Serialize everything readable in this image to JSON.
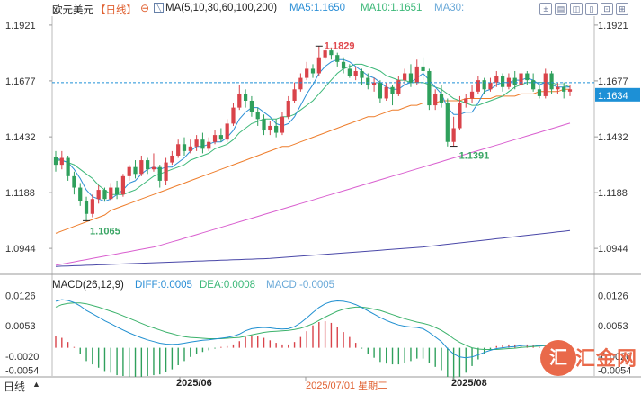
{
  "header": {
    "symbol": "欧元美元",
    "period": "【日线】",
    "ma_label": "MA(5,10,30,60,100,200)",
    "ma5": "MA5:1.1650",
    "ma10": "MA10:1.1651",
    "ma30": "MA30:"
  },
  "macd_header": {
    "label": "MACD(26,12,9)",
    "diff": "DIFF:0.0005",
    "dea": "DEA:0.0008",
    "macd": "MACD:-0.0005"
  },
  "colors": {
    "up": "#d9434a",
    "down": "#2fa05c",
    "ma5": "#2c8fd6",
    "ma10": "#3cb878",
    "ma30": "#ee7d2b",
    "ma60": "#d95fcf",
    "ma100": "#4a48a8",
    "dea_line": "#1f8fd0",
    "diff_line": "#3bb26b",
    "price_tag_bg": "#1d90d6"
  },
  "buttons": [
    "±",
    "▤",
    "◫",
    "▯",
    "⊡",
    "⊞"
  ],
  "watermark": {
    "mark": "汇",
    "name": "汇金网"
  },
  "bottom_bar": {
    "left_label": "日线",
    "dates": [
      "2025/06",
      "2025/07/01 星期二",
      "2025/08"
    ]
  },
  "chart_data": [
    {
      "type": "candlestick",
      "title": "欧元美元 日线",
      "ylim": [
        1.085,
        1.196
      ],
      "y_ticks": [
        "1.1921",
        "1.1677",
        "1.1432",
        "1.1188",
        "1.0944"
      ],
      "last_price": "1.1634",
      "annotations": {
        "high": "1.1829",
        "low_left": "1.1065",
        "low_right": "1.1391"
      },
      "candles": [
        [
          1.1345,
          1.131,
          1.137,
          1.128
        ],
        [
          1.131,
          1.134,
          1.137,
          1.129
        ],
        [
          1.134,
          1.126,
          1.135,
          1.124
        ],
        [
          1.126,
          1.121,
          1.128,
          1.118
        ],
        [
          1.121,
          1.115,
          1.123,
          1.113
        ],
        [
          1.115,
          1.1095,
          1.117,
          1.1065
        ],
        [
          1.1095,
          1.116,
          1.118,
          1.108
        ],
        [
          1.116,
          1.12,
          1.122,
          1.114
        ],
        [
          1.12,
          1.116,
          1.121,
          1.115
        ],
        [
          1.116,
          1.121,
          1.123,
          1.115
        ],
        [
          1.121,
          1.118,
          1.124,
          1.116
        ],
        [
          1.118,
          1.126,
          1.127,
          1.117
        ],
        [
          1.126,
          1.13,
          1.131,
          1.124
        ],
        [
          1.13,
          1.127,
          1.133,
          1.125
        ],
        [
          1.127,
          1.133,
          1.135,
          1.126
        ],
        [
          1.133,
          1.129,
          1.134,
          1.127
        ],
        [
          1.129,
          1.13,
          1.136,
          1.128
        ],
        [
          1.13,
          1.124,
          1.131,
          1.121
        ],
        [
          1.124,
          1.132,
          1.134,
          1.122
        ],
        [
          1.132,
          1.135,
          1.137,
          1.131
        ],
        [
          1.135,
          1.14,
          1.142,
          1.134
        ],
        [
          1.14,
          1.137,
          1.143,
          1.135
        ],
        [
          1.137,
          1.139,
          1.142,
          1.136
        ],
        [
          1.139,
          1.142,
          1.144,
          1.137
        ],
        [
          1.142,
          1.138,
          1.145,
          1.136
        ],
        [
          1.138,
          1.141,
          1.143,
          1.137
        ],
        [
          1.141,
          1.144,
          1.146,
          1.14
        ],
        [
          1.144,
          1.142,
          1.147,
          1.141
        ],
        [
          1.142,
          1.149,
          1.151,
          1.141
        ],
        [
          1.149,
          1.156,
          1.158,
          1.148
        ],
        [
          1.156,
          1.162,
          1.166,
          1.155
        ],
        [
          1.162,
          1.159,
          1.164,
          1.156
        ],
        [
          1.159,
          1.154,
          1.161,
          1.152
        ],
        [
          1.154,
          1.151,
          1.156,
          1.148
        ],
        [
          1.151,
          1.146,
          1.153,
          1.144
        ],
        [
          1.146,
          1.148,
          1.15,
          1.144
        ],
        [
          1.148,
          1.145,
          1.151,
          1.143
        ],
        [
          1.145,
          1.152,
          1.154,
          1.144
        ],
        [
          1.152,
          1.159,
          1.161,
          1.151
        ],
        [
          1.159,
          1.164,
          1.167,
          1.158
        ],
        [
          1.164,
          1.169,
          1.171,
          1.163
        ],
        [
          1.169,
          1.173,
          1.176,
          1.168
        ],
        [
          1.173,
          1.171,
          1.175,
          1.169
        ],
        [
          1.171,
          1.178,
          1.1829,
          1.17
        ],
        [
          1.178,
          1.181,
          1.183,
          1.177
        ],
        [
          1.181,
          1.179,
          1.182,
          1.177
        ],
        [
          1.179,
          1.176,
          1.18,
          1.174
        ],
        [
          1.176,
          1.173,
          1.178,
          1.171
        ],
        [
          1.173,
          1.17,
          1.175,
          1.169
        ],
        [
          1.17,
          1.172,
          1.174,
          1.168
        ],
        [
          1.172,
          1.169,
          1.173,
          1.166
        ],
        [
          1.169,
          1.166,
          1.171,
          1.164
        ],
        [
          1.166,
          1.167,
          1.169,
          1.163
        ],
        [
          1.167,
          1.16,
          1.168,
          1.158
        ],
        [
          1.16,
          1.165,
          1.167,
          1.159
        ],
        [
          1.165,
          1.162,
          1.166,
          1.157
        ],
        [
          1.162,
          1.168,
          1.17,
          1.161
        ],
        [
          1.168,
          1.171,
          1.173,
          1.166
        ],
        [
          1.171,
          1.167,
          1.175,
          1.165
        ],
        [
          1.167,
          1.174,
          1.177,
          1.166
        ],
        [
          1.174,
          1.172,
          1.178,
          1.168
        ],
        [
          1.172,
          1.157,
          1.173,
          1.155
        ],
        [
          1.157,
          1.162,
          1.164,
          1.155
        ],
        [
          1.162,
          1.158,
          1.166,
          1.156
        ],
        [
          1.158,
          1.141,
          1.16,
          1.139
        ],
        [
          1.141,
          1.147,
          1.152,
          1.1391
        ],
        [
          1.147,
          1.158,
          1.161,
          1.146
        ],
        [
          1.158,
          1.16,
          1.162,
          1.156
        ],
        [
          1.16,
          1.163,
          1.166,
          1.158
        ],
        [
          1.163,
          1.168,
          1.17,
          1.162
        ],
        [
          1.168,
          1.164,
          1.169,
          1.162
        ],
        [
          1.164,
          1.167,
          1.169,
          1.163
        ],
        [
          1.167,
          1.17,
          1.172,
          1.165
        ],
        [
          1.17,
          1.165,
          1.171,
          1.163
        ],
        [
          1.165,
          1.169,
          1.171,
          1.164
        ],
        [
          1.169,
          1.166,
          1.172,
          1.164
        ],
        [
          1.166,
          1.171,
          1.172,
          1.165
        ],
        [
          1.171,
          1.168,
          1.172,
          1.166
        ],
        [
          1.168,
          1.164,
          1.171,
          1.163
        ],
        [
          1.164,
          1.161,
          1.166,
          1.16
        ],
        [
          1.161,
          1.171,
          1.173,
          1.16
        ],
        [
          1.171,
          1.164,
          1.172,
          1.162
        ],
        [
          1.164,
          1.165,
          1.167,
          1.162
        ],
        [
          1.165,
          1.163,
          1.167,
          1.16
        ],
        [
          1.163,
          1.164,
          1.166,
          1.161
        ]
      ],
      "ma": {
        "ma5": [
          1.134,
          1.133,
          1.132,
          1.129,
          1.125,
          1.12,
          1.117,
          1.116,
          1.115,
          1.116,
          1.118,
          1.12,
          1.123,
          1.124,
          1.127,
          1.129,
          1.13,
          1.129,
          1.13,
          1.13,
          1.132,
          1.134,
          1.137,
          1.139,
          1.139,
          1.14,
          1.141,
          1.141,
          1.143,
          1.146,
          1.151,
          1.154,
          1.156,
          1.156,
          1.154,
          1.152,
          1.149,
          1.148,
          1.149,
          1.152,
          1.157,
          1.162,
          1.166,
          1.171,
          1.174,
          1.176,
          1.177,
          1.177,
          1.176,
          1.174,
          1.172,
          1.17,
          1.169,
          1.167,
          1.165,
          1.164,
          1.164,
          1.166,
          1.167,
          1.169,
          1.171,
          1.168,
          1.165,
          1.162,
          1.156,
          1.153,
          1.153,
          1.154,
          1.154,
          1.158,
          1.163,
          1.164,
          1.166,
          1.167,
          1.167,
          1.168,
          1.168,
          1.169,
          1.168,
          1.166,
          1.167,
          1.166,
          1.165,
          1.165,
          1.165
        ],
        "ma10": [
          1.133,
          1.133,
          1.132,
          1.131,
          1.129,
          1.127,
          1.125,
          1.122,
          1.12,
          1.118,
          1.118,
          1.118,
          1.119,
          1.12,
          1.122,
          1.124,
          1.126,
          1.127,
          1.128,
          1.129,
          1.13,
          1.131,
          1.133,
          1.134,
          1.135,
          1.136,
          1.138,
          1.139,
          1.14,
          1.142,
          1.145,
          1.147,
          1.149,
          1.15,
          1.151,
          1.151,
          1.151,
          1.152,
          1.152,
          1.153,
          1.155,
          1.157,
          1.159,
          1.162,
          1.165,
          1.168,
          1.171,
          1.173,
          1.174,
          1.175,
          1.175,
          1.174,
          1.173,
          1.172,
          1.17,
          1.169,
          1.168,
          1.168,
          1.167,
          1.167,
          1.167,
          1.166,
          1.165,
          1.164,
          1.162,
          1.16,
          1.159,
          1.158,
          1.157,
          1.157,
          1.158,
          1.159,
          1.16,
          1.161,
          1.163,
          1.165,
          1.166,
          1.167,
          1.167,
          1.167,
          1.167,
          1.167,
          1.166,
          1.166,
          1.165
        ],
        "ma30": [
          1.101,
          1.102,
          1.103,
          1.104,
          1.105,
          1.106,
          1.107,
          1.108,
          1.109,
          1.111,
          1.112,
          1.113,
          1.114,
          1.115,
          1.116,
          1.117,
          1.118,
          1.119,
          1.12,
          1.121,
          1.122,
          1.123,
          1.124,
          1.125,
          1.126,
          1.127,
          1.128,
          1.129,
          1.13,
          1.131,
          1.132,
          1.133,
          1.134,
          1.135,
          1.136,
          1.137,
          1.138,
          1.139,
          1.139,
          1.14,
          1.141,
          1.142,
          1.143,
          1.144,
          1.145,
          1.146,
          1.147,
          1.148,
          1.149,
          1.15,
          1.151,
          1.152,
          1.152,
          1.153,
          1.154,
          1.155,
          1.155,
          1.156,
          1.157,
          1.157,
          1.158,
          1.158,
          1.158,
          1.159,
          1.159,
          1.159,
          1.159,
          1.16,
          1.16,
          1.16,
          1.16,
          1.16,
          1.161,
          1.161,
          1.161,
          1.161,
          1.162,
          1.162,
          1.162,
          1.163,
          1.163,
          1.163,
          1.163,
          1.164,
          1.164
        ],
        "ma60": [
          1.087,
          1.0875,
          1.088,
          1.0885,
          1.089,
          1.0895,
          1.09,
          1.0905,
          1.091,
          1.0915,
          1.092,
          1.0925,
          1.093,
          1.0935,
          1.094,
          1.0945,
          1.095,
          1.0957,
          1.0965,
          1.0973,
          1.098,
          1.0988,
          1.0996,
          1.1004,
          1.1012,
          1.102,
          1.1028,
          1.1036,
          1.1044,
          1.1052,
          1.106,
          1.1068,
          1.1076,
          1.1084,
          1.1092,
          1.11,
          1.1108,
          1.1116,
          1.1124,
          1.1132,
          1.114,
          1.1148,
          1.1156,
          1.1164,
          1.1172,
          1.118,
          1.1188,
          1.1196,
          1.1204,
          1.1212,
          1.122,
          1.1228,
          1.1236,
          1.1244,
          1.1252,
          1.126,
          1.1268,
          1.1276,
          1.1284,
          1.1292,
          1.13,
          1.1308,
          1.1316,
          1.1324,
          1.1332,
          1.134,
          1.1348,
          1.1356,
          1.1364,
          1.1372,
          1.138,
          1.1388,
          1.1396,
          1.1404,
          1.1412,
          1.142,
          1.1428,
          1.1436,
          1.1444,
          1.1452,
          1.146,
          1.1468,
          1.1476,
          1.1484,
          1.1492
        ],
        "ma100": [
          1.0865,
          1.0866,
          1.0867,
          1.0868,
          1.0869,
          1.087,
          1.0871,
          1.0872,
          1.0873,
          1.0874,
          1.0875,
          1.0876,
          1.0877,
          1.0878,
          1.0879,
          1.088,
          1.0881,
          1.0882,
          1.0883,
          1.0884,
          1.0885,
          1.0886,
          1.0887,
          1.0888,
          1.0889,
          1.089,
          1.0891,
          1.0892,
          1.0893,
          1.0894,
          1.0895,
          1.0896,
          1.0897,
          1.0898,
          1.0899,
          1.09,
          1.0902,
          1.0904,
          1.0906,
          1.0908,
          1.091,
          1.0912,
          1.0914,
          1.0916,
          1.0918,
          1.092,
          1.0922,
          1.0924,
          1.0926,
          1.0928,
          1.093,
          1.0932,
          1.0934,
          1.0936,
          1.0938,
          1.094,
          1.0942,
          1.0944,
          1.0946,
          1.0948,
          1.095,
          1.0953,
          1.0956,
          1.0959,
          1.0962,
          1.0965,
          1.0968,
          1.0971,
          1.0974,
          1.0977,
          1.098,
          1.0983,
          1.0986,
          1.0989,
          1.0992,
          1.0995,
          1.0998,
          1.1001,
          1.1004,
          1.1007,
          1.101,
          1.1013,
          1.1016,
          1.1019,
          1.1022
        ]
      }
    },
    {
      "type": "macd",
      "title": "MACD(26,12,9)",
      "ylim": [
        -0.0068,
        0.014
      ],
      "y_ticks": [
        "0.0126",
        "0.0053",
        "-0.0020",
        "-0.0054"
      ],
      "diff": [
        0.0112,
        0.0116,
        0.0114,
        0.0109,
        0.0101,
        0.009,
        0.0082,
        0.0074,
        0.0065,
        0.0058,
        0.005,
        0.0043,
        0.0036,
        0.003,
        0.0024,
        0.0019,
        0.0015,
        0.0011,
        0.0009,
        0.0008,
        0.0009,
        0.0011,
        0.0014,
        0.0016,
        0.0018,
        0.0019,
        0.0021,
        0.0023,
        0.0025,
        0.0028,
        0.0033,
        0.0041,
        0.0046,
        0.0048,
        0.0049,
        0.0048,
        0.0046,
        0.0045,
        0.0046,
        0.0051,
        0.006,
        0.0072,
        0.0085,
        0.0097,
        0.0106,
        0.0111,
        0.0113,
        0.0112,
        0.0109,
        0.0104,
        0.0097,
        0.0089,
        0.0081,
        0.0073,
        0.0066,
        0.006,
        0.0055,
        0.0052,
        0.005,
        0.0049,
        0.0046,
        0.0037,
        0.0026,
        0.0015,
        -0.0002,
        -0.0015,
        -0.0022,
        -0.0024,
        -0.0022,
        -0.0017,
        -0.0011,
        -0.0006,
        -0.0002,
        0.0,
        0.0002,
        0.0003,
        0.0005,
        0.0006,
        0.0006,
        0.0005,
        0.0006,
        0.0006,
        0.0005,
        0.0005,
        0.0005
      ],
      "dea": [
        0.0098,
        0.0104,
        0.0107,
        0.0108,
        0.0108,
        0.0106,
        0.0102,
        0.0098,
        0.0093,
        0.0088,
        0.0083,
        0.0077,
        0.0071,
        0.0065,
        0.0059,
        0.0053,
        0.0048,
        0.0043,
        0.0038,
        0.0034,
        0.003,
        0.0027,
        0.0025,
        0.0024,
        0.0023,
        0.0022,
        0.0022,
        0.0022,
        0.0023,
        0.0024,
        0.0025,
        0.0028,
        0.0031,
        0.0034,
        0.0037,
        0.0039,
        0.004,
        0.0041,
        0.0042,
        0.0044,
        0.0047,
        0.0052,
        0.0058,
        0.0066,
        0.0074,
        0.0081,
        0.0088,
        0.0093,
        0.0096,
        0.0098,
        0.0098,
        0.0096,
        0.0093,
        0.009,
        0.0085,
        0.008,
        0.0075,
        0.007,
        0.0066,
        0.0062,
        0.0059,
        0.0055,
        0.0049,
        0.0042,
        0.0033,
        0.0022,
        0.0013,
        0.0006,
        0.0,
        -0.0003,
        -0.0004,
        -0.0004,
        -0.0004,
        -0.0003,
        -0.0002,
        -0.0001,
        0.0001,
        0.0002,
        0.0003,
        0.0004,
        0.0005,
        0.0006,
        0.0007,
        0.0008,
        0.0008
      ]
    }
  ]
}
